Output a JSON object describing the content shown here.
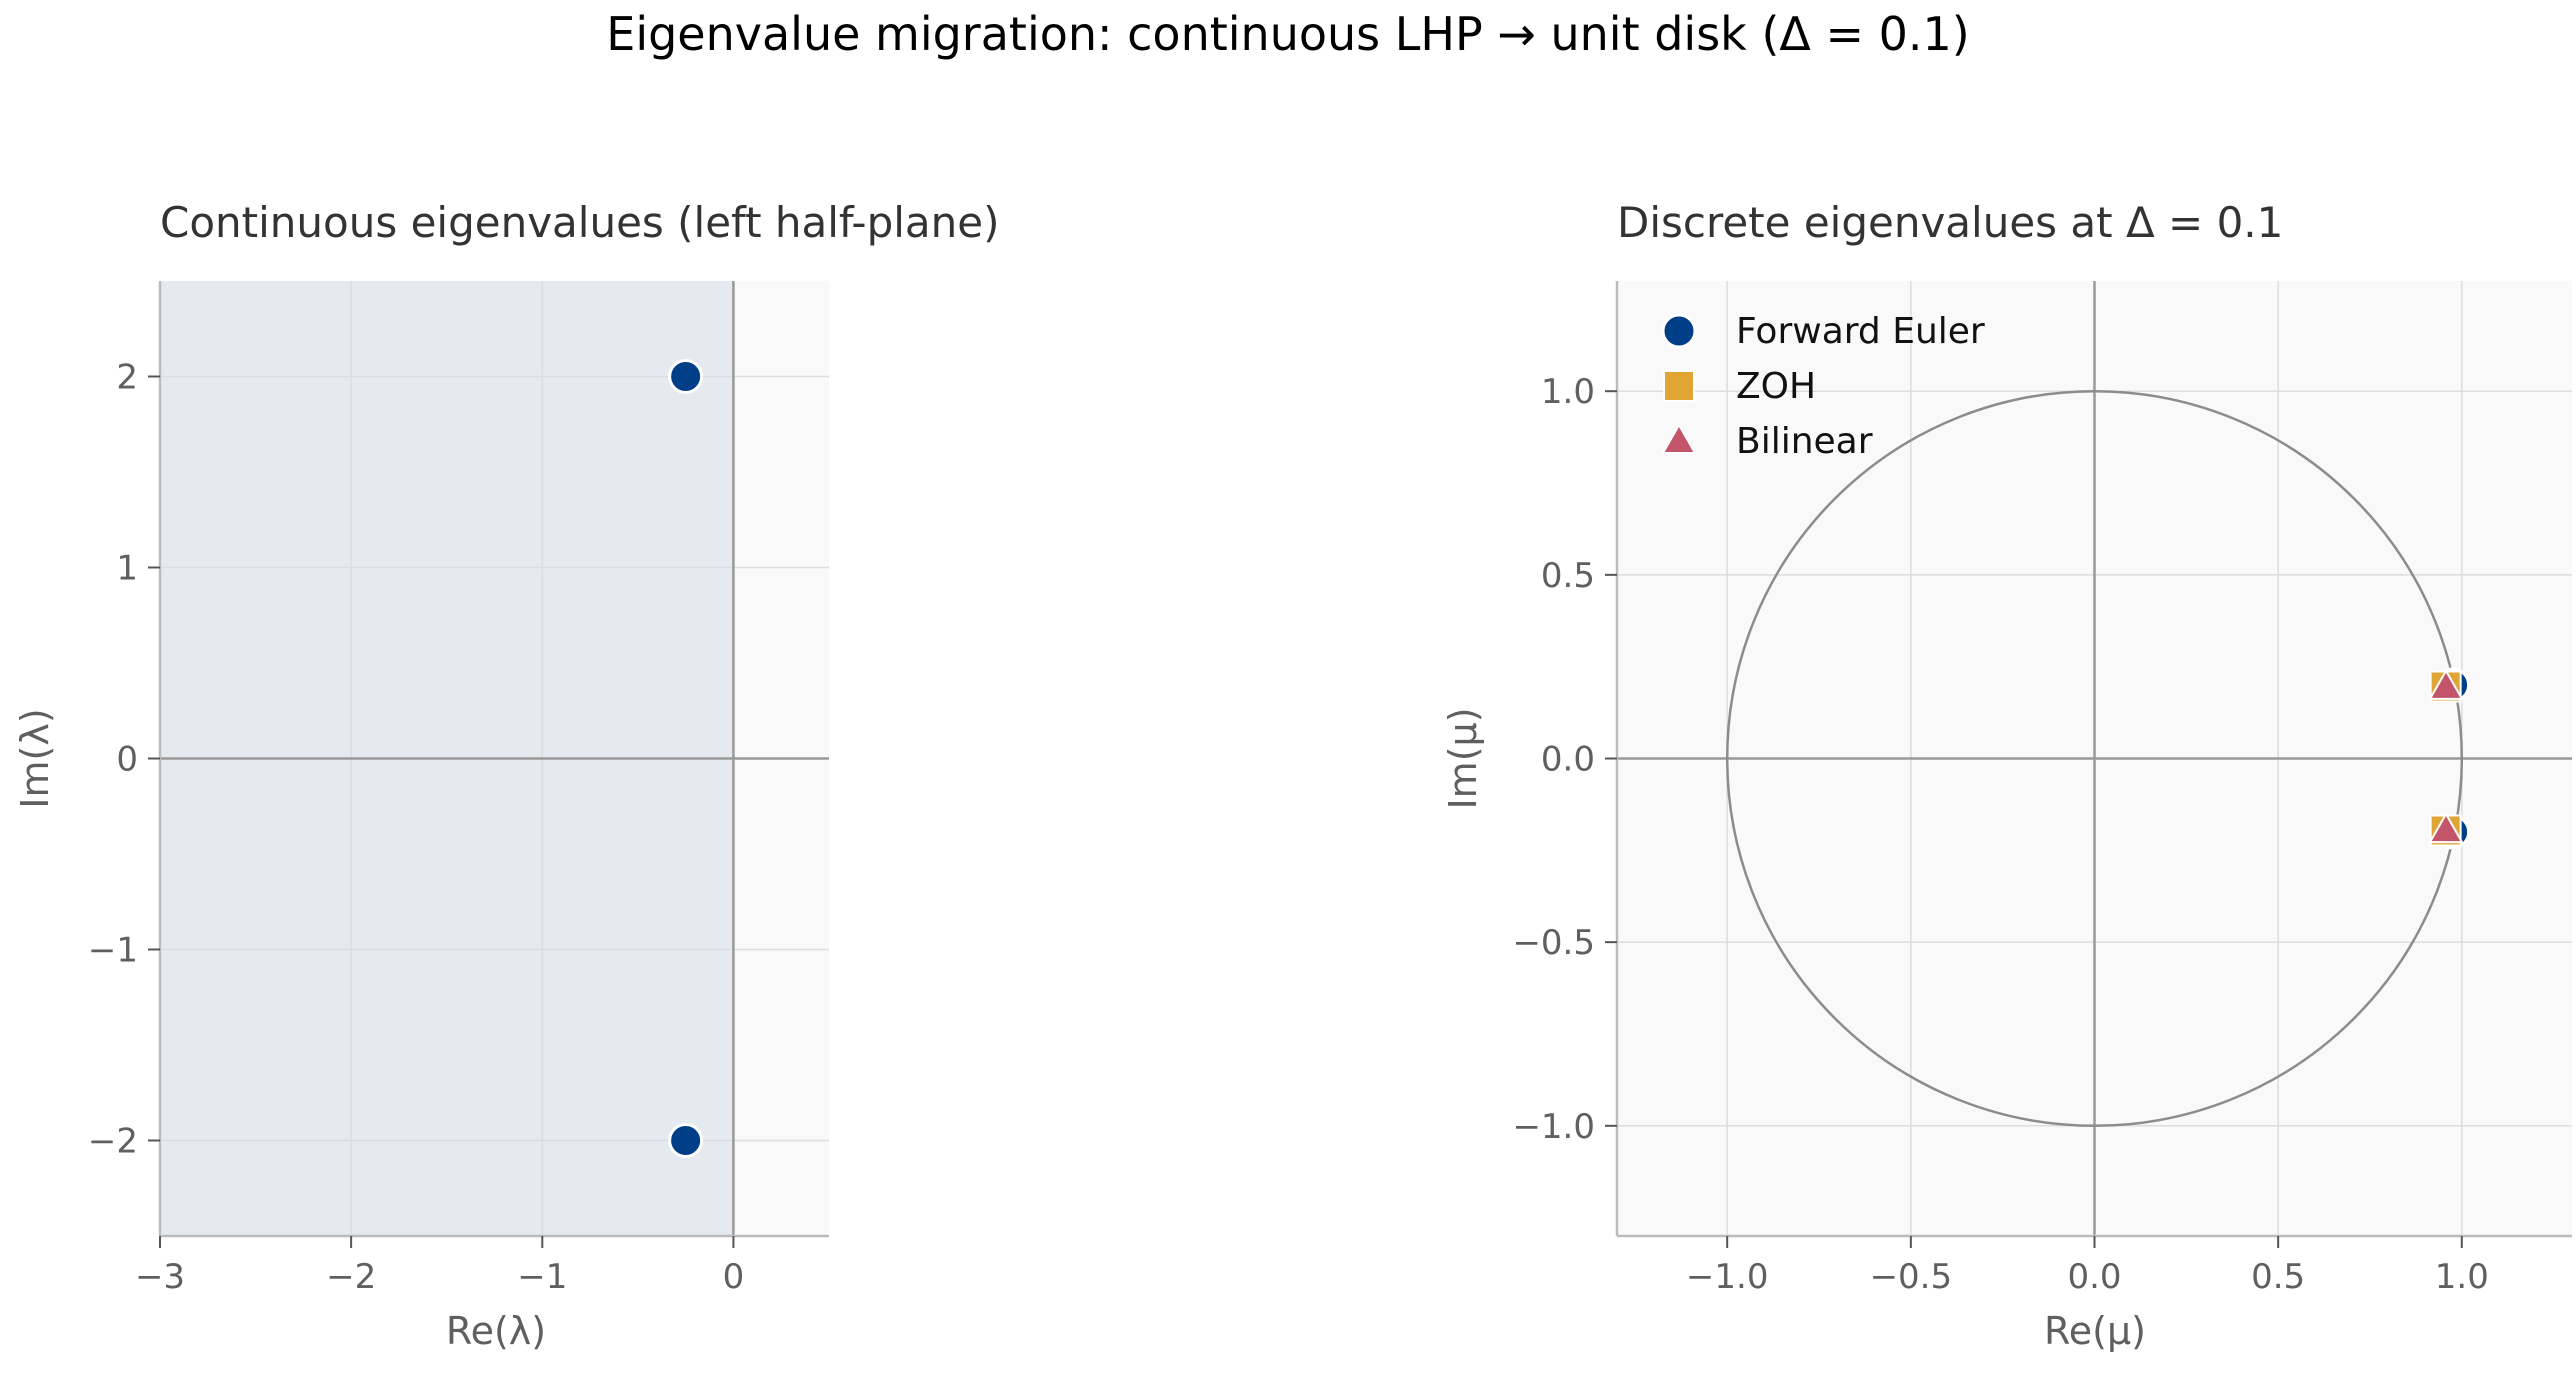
{
  "figure": {
    "title": "Eigenvalue migration: continuous LHP → unit disk (Δ = 0.1)"
  },
  "colors": {
    "forward_euler": "#003f88",
    "zoh": "#e0a534",
    "bilinear": "#c25569",
    "lhp_shade": "#e5e9f0",
    "axes_bg": "#f9f9f9",
    "grid": "#dddddd",
    "zero_line": "#999999",
    "unit_circle": "#8c8c8c",
    "text": "#333333",
    "tick_text": "#5f5f5f"
  },
  "chart_data": [
    {
      "type": "scatter",
      "title": "Continuous eigenvalues (left half-plane)",
      "xlabel": "Re(λ)",
      "ylabel": "Im(λ)",
      "xlim": [
        -3,
        0.5
      ],
      "ylim": [
        -2.5,
        2.5
      ],
      "xticks": [
        -3,
        -2,
        -1,
        0
      ],
      "xtick_labels": [
        "−3",
        "−2",
        "−1",
        "0"
      ],
      "yticks": [
        -2,
        -1,
        0,
        1,
        2
      ],
      "ytick_labels": [
        "−2",
        "−1",
        "0",
        "1",
        "2"
      ],
      "grid": true,
      "shaded_region": "left half-plane (Re < 0)",
      "series": [
        {
          "marker": "circle",
          "color_key": "forward_euler",
          "points": [
            {
              "x": -0.25,
              "y": 2.0
            },
            {
              "x": -0.25,
              "y": -2.0
            }
          ]
        }
      ]
    },
    {
      "type": "scatter",
      "title": "Discrete eigenvalues at Δ = 0.1",
      "xlabel": "Re(μ)",
      "ylabel": "Im(μ)",
      "xlim": [
        -1.3,
        1.3
      ],
      "ylim": [
        -1.3,
        1.3
      ],
      "xticks": [
        -1.0,
        -0.5,
        0.0,
        0.5,
        1.0
      ],
      "xtick_labels": [
        "−1.0",
        "−0.5",
        "0.0",
        "0.5",
        "1.0"
      ],
      "yticks": [
        -1.0,
        -0.5,
        0.0,
        0.5,
        1.0
      ],
      "ytick_labels": [
        "−1.0",
        "−0.5",
        "0.0",
        "0.5",
        "1.0"
      ],
      "grid": true,
      "unit_circle": true,
      "legend_position": "top-left",
      "series": [
        {
          "name": "Forward Euler",
          "marker": "circle",
          "color_key": "forward_euler",
          "points": [
            {
              "x": 0.975,
              "y": 0.2
            },
            {
              "x": 0.975,
              "y": -0.2
            }
          ]
        },
        {
          "name": "ZOH",
          "marker": "square",
          "color_key": "zoh",
          "points": [
            {
              "x": 0.956,
              "y": 0.196
            },
            {
              "x": 0.956,
              "y": -0.196
            }
          ]
        },
        {
          "name": "Bilinear",
          "marker": "triangle",
          "color_key": "bilinear",
          "points": [
            {
              "x": 0.957,
              "y": 0.195
            },
            {
              "x": 0.957,
              "y": -0.195
            }
          ]
        }
      ]
    }
  ]
}
